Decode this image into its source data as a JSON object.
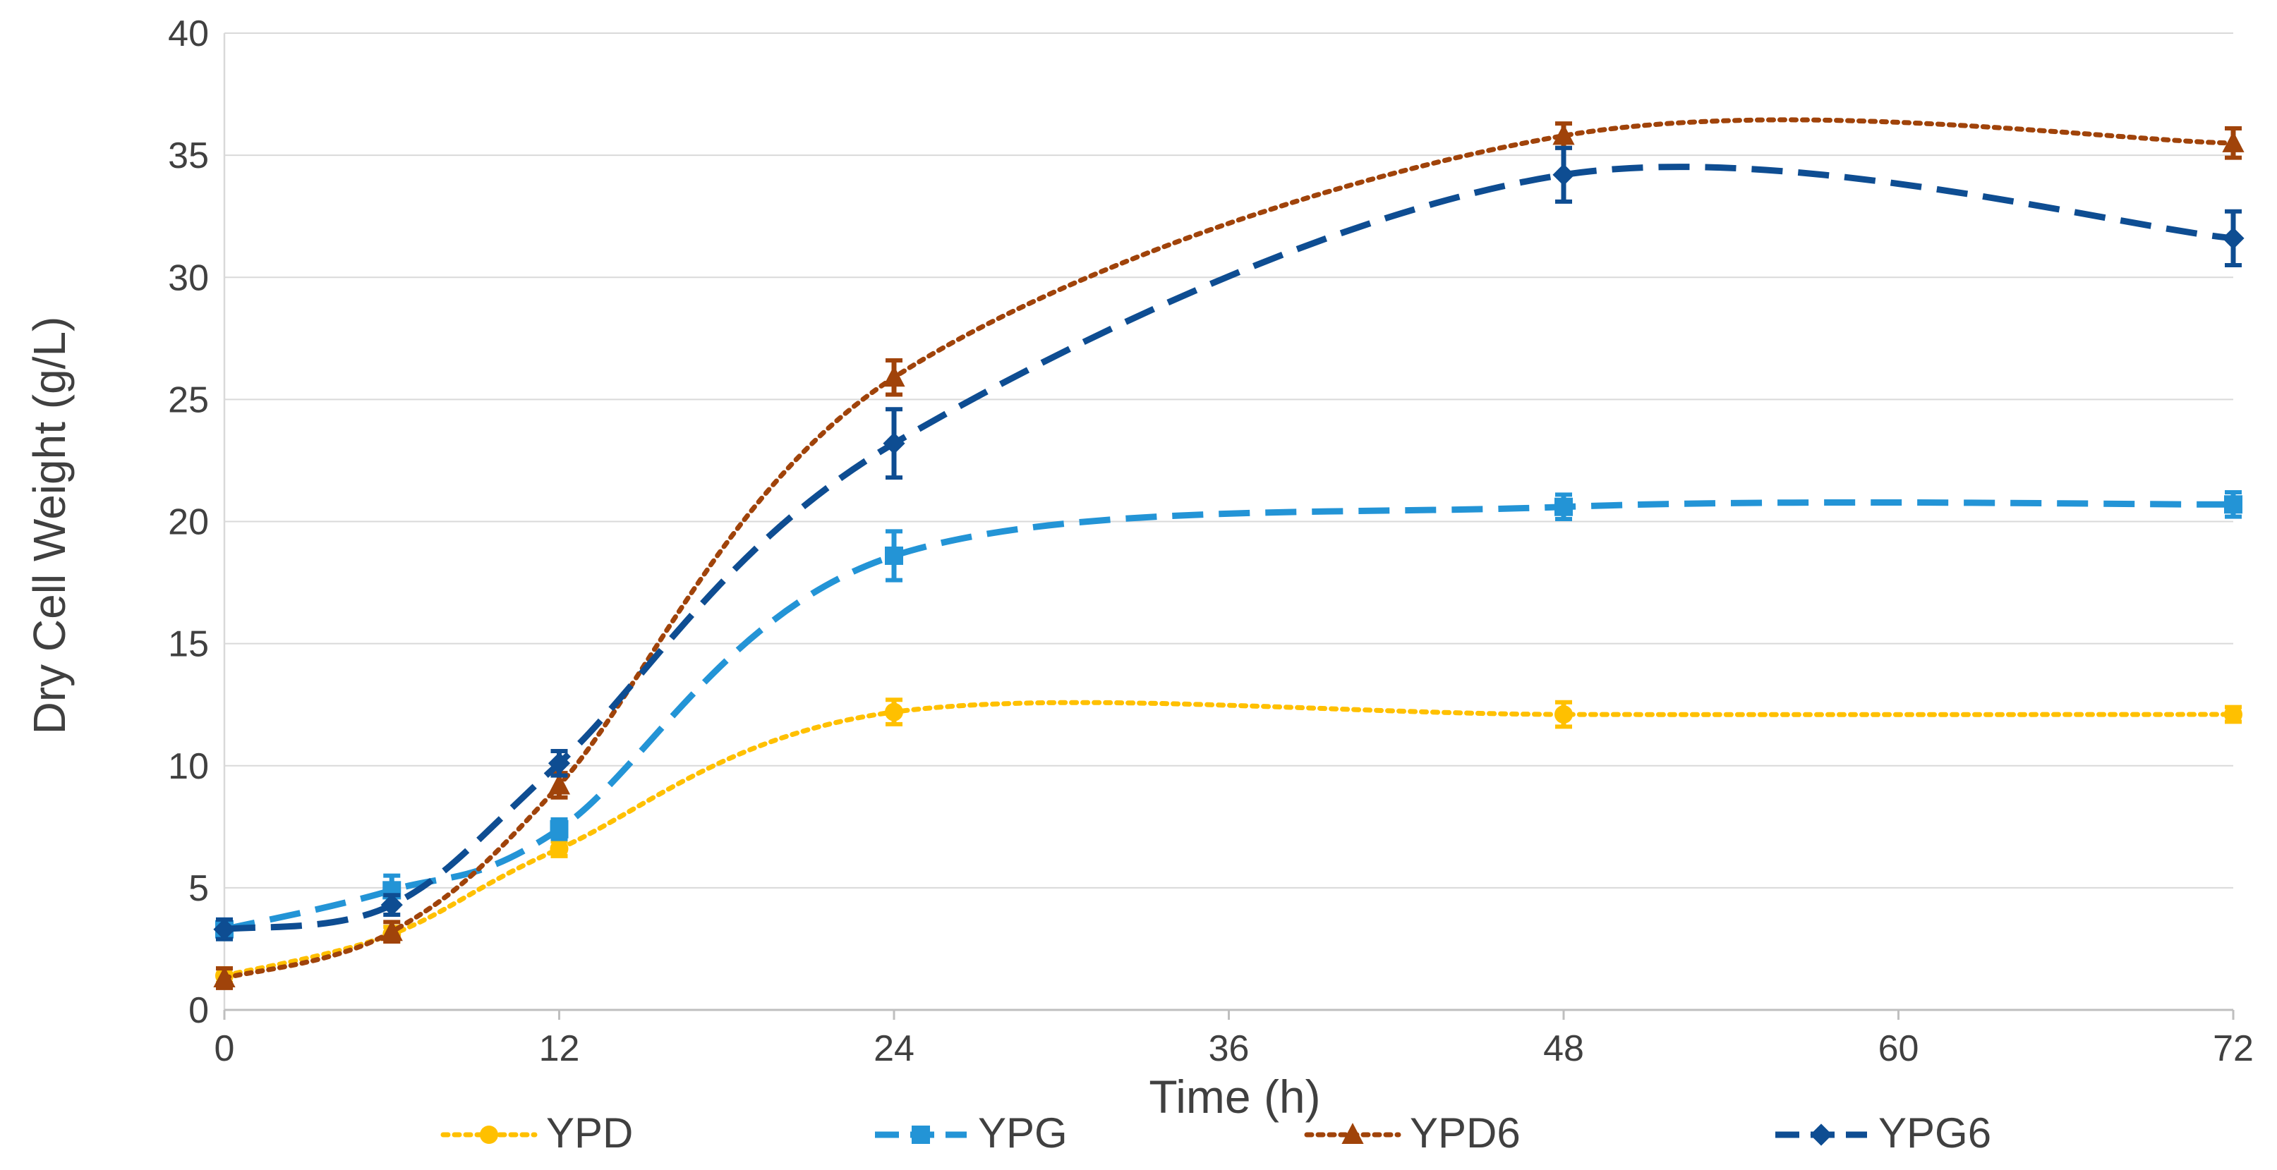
{
  "chart_data": {
    "type": "line",
    "title": "",
    "xlabel": "Time (h)",
    "ylabel": "Dry Cell Weight (g/L)",
    "xlim": [
      0,
      72
    ],
    "ylim": [
      0,
      40
    ],
    "xticks": [
      "0",
      "12",
      "24",
      "36",
      "48",
      "60",
      "72"
    ],
    "yticks": [
      "0",
      "5",
      "10",
      "15",
      "20",
      "25",
      "30",
      "35",
      "40"
    ],
    "grid": "horizontal",
    "legend_position": "bottom",
    "x": [
      0,
      6,
      12,
      24,
      48,
      72
    ],
    "series": [
      {
        "name": "YPD",
        "color": "#FFC000",
        "marker": "circle",
        "dash": "dotted",
        "values": [
          1.4,
          3.1,
          6.6,
          12.2,
          12.1,
          12.1
        ],
        "errors": [
          0.3,
          0.3,
          0.3,
          0.5,
          0.5,
          0.3
        ]
      },
      {
        "name": "YPG",
        "color": "#2394D6",
        "marker": "square",
        "dash": "dashed",
        "values": [
          3.3,
          4.9,
          7.4,
          18.6,
          20.6,
          20.7
        ],
        "errors": [
          0.4,
          0.6,
          0.4,
          1.0,
          0.5,
          0.5
        ]
      },
      {
        "name": "YPD6",
        "color": "#A0430A",
        "marker": "triangle",
        "dash": "dotted",
        "values": [
          1.3,
          3.2,
          9.2,
          25.9,
          35.8,
          35.5
        ],
        "errors": [
          0.4,
          0.4,
          0.5,
          0.7,
          0.5,
          0.6
        ]
      },
      {
        "name": "YPG6",
        "color": "#0E4D92",
        "marker": "diamond",
        "dash": "dashed",
        "values": [
          3.3,
          4.3,
          10.1,
          23.2,
          34.2,
          31.6
        ],
        "errors": [
          0.4,
          0.4,
          0.5,
          1.4,
          1.1,
          1.1
        ]
      }
    ]
  }
}
